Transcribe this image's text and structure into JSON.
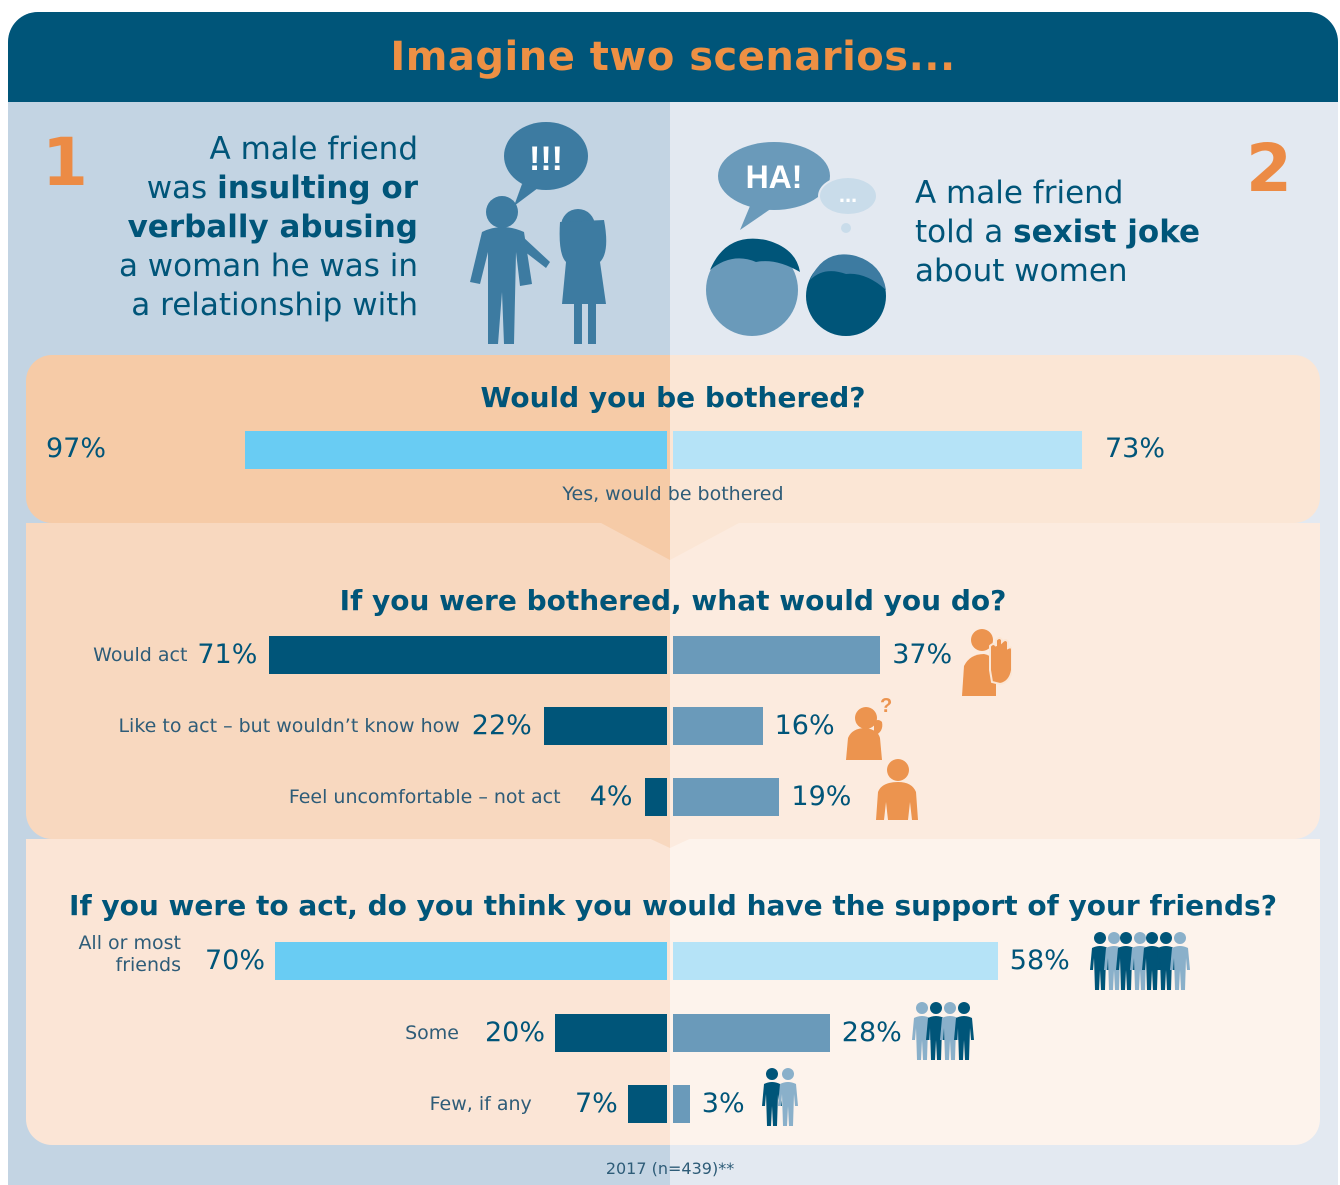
{
  "header": {
    "title": "Imagine two scenarios..."
  },
  "scenario1": {
    "number": "1",
    "lines": [
      "A male friend",
      "was ",
      "insulting or",
      "verbally abusing",
      "a woman he was in",
      "a relationship with"
    ],
    "speech": "!!!"
  },
  "scenario2": {
    "number": "2",
    "line1": "A male friend",
    "line2_prefix": "told a ",
    "line2_bold": "sexist joke",
    "line3": "about women",
    "speech_main": "HA!",
    "speech_small": "..."
  },
  "colors": {
    "header_bg": "#005579",
    "title": "#ee9044",
    "light_blue_left": "#69ccf3",
    "light_blue_right": "#b5e3f7",
    "dark_blue_left": "#005579",
    "mid_blue_right": "#6a9aba",
    "icon_orange": "#ec944f"
  },
  "chart_data": [
    {
      "type": "bar",
      "title": "Would you be bothered?",
      "categories": [
        "Yes, would be bothered"
      ],
      "series": [
        {
          "name": "1",
          "values": [
            97
          ]
        },
        {
          "name": "2",
          "values": [
            73
          ]
        }
      ],
      "unit": "%"
    },
    {
      "type": "bar",
      "title": "If you were bothered, what would you do?",
      "categories": [
        "Would act",
        "Like to act – but wouldn’t know how",
        "Feel uncomfortable – not act"
      ],
      "series": [
        {
          "name": "1",
          "values": [
            71,
            22,
            4
          ]
        },
        {
          "name": "2",
          "values": [
            37,
            16,
            19
          ]
        }
      ],
      "icons": [
        "raised-hand-person-icon",
        "confused-person-icon",
        "uncomfortable-person-icon"
      ],
      "unit": "%"
    },
    {
      "type": "bar",
      "title": "If you were to act, do you think you would have the support of your friends?",
      "categories": [
        "All or most friends",
        "Some",
        "Few, if any"
      ],
      "series": [
        {
          "name": "1",
          "values": [
            70,
            20,
            7
          ]
        },
        {
          "name": "2",
          "values": [
            58,
            28,
            3
          ]
        }
      ],
      "icons": [
        "large-group-icon",
        "medium-group-icon",
        "pair-icon"
      ],
      "unit": "%"
    }
  ],
  "q1": {
    "title": "Would you be bothered?",
    "caption": "Yes, would be bothered",
    "left": "97%",
    "right": "73%"
  },
  "q2": {
    "title": "If you were bothered, what would you do?",
    "rows": [
      {
        "label": "Would act",
        "left": "71%",
        "right": "37%"
      },
      {
        "label": "Like to act – but wouldn’t know how",
        "left": "22%",
        "right": "16%"
      },
      {
        "label": "Feel uncomfortable – not act",
        "left": "4%",
        "right": "19%"
      }
    ]
  },
  "q3": {
    "title": "If you were to act, do you think you would have the support of your friends?",
    "rows": [
      {
        "label1": "All or most",
        "label2": "friends",
        "left": "70%",
        "right": "58%"
      },
      {
        "label": "Some",
        "left": "20%",
        "right": "28%"
      },
      {
        "label": "Few, if any",
        "left": "7%",
        "right": "3%"
      }
    ]
  },
  "footer": "2017 (n=439)**"
}
